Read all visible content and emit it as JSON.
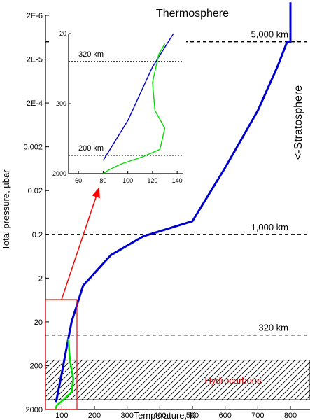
{
  "chart_data": [
    {
      "type": "line",
      "xlabel": "Temperature, K",
      "ylabel": "Total pressure, µbar",
      "x_ticks": [
        "100",
        "200",
        "300",
        "400",
        "500",
        "600",
        "700",
        "800"
      ],
      "y_ticks": [
        "2E-6",
        "2E-5",
        "2E-4",
        "0.002",
        "0.02",
        "0.2",
        "2",
        "20",
        "200",
        "2000"
      ],
      "xlim": [
        50,
        860
      ],
      "ylim": [
        2000,
        2e-06
      ],
      "y_scale": "log",
      "series": [
        {
          "color": "#0000cc",
          "x": [
            800,
            800,
            790,
            760,
            700,
            600,
            500,
            350,
            250,
            165,
            130,
            112,
            100,
            90,
            85,
            82
          ],
          "y": [
            1e-06,
            8e-06,
            8e-06,
            3e-05,
            0.0003,
            0.006,
            0.1,
            0.22,
            0.6,
            3,
            20,
            100,
            300,
            700,
            1100,
            1400
          ]
        },
        {
          "color": "#00dd00",
          "x": [
            80,
            85,
            95,
            110,
            130,
            135,
            130,
            125,
            120
          ],
          "y": [
            2000,
            1600,
            1400,
            1100,
            800,
            400,
            250,
            150,
            50
          ]
        }
      ],
      "annotations": {
        "title": "Thermosphere",
        "side_label": "<-Stratosphere",
        "levels": [
          {
            "label": "5,000 km",
            "y": 8e-06
          },
          {
            "label": "1,000 km",
            "y": 0.2
          },
          {
            "label": "320 km",
            "y": 40
          }
        ],
        "band": {
          "label": "Hydrocarbons",
          "ymin": 150,
          "ymax": 1200
        }
      }
    },
    {
      "type": "line",
      "x_ticks": [
        "60",
        "80",
        "100",
        "120",
        "140"
      ],
      "y_ticks": [
        "20",
        "200",
        "2000"
      ],
      "xlim": [
        52,
        145
      ],
      "ylim": [
        2000,
        20
      ],
      "y_scale": "log",
      "series": [
        {
          "color": "#0000cc",
          "x": [
            80,
            100,
            120,
            137
          ],
          "y": [
            1300,
            350,
            60,
            20
          ]
        },
        {
          "color": "#00dd00",
          "x": [
            80,
            85,
            95,
            112,
            126,
            130,
            122,
            120,
            125,
            130
          ],
          "y": [
            2000,
            1750,
            1450,
            1150,
            900,
            450,
            250,
            100,
            40,
            28
          ]
        }
      ],
      "annotations": {
        "levels": [
          {
            "label": "320 km",
            "y": 50
          },
          {
            "label": "200 km",
            "y": 1100
          }
        ]
      }
    }
  ]
}
